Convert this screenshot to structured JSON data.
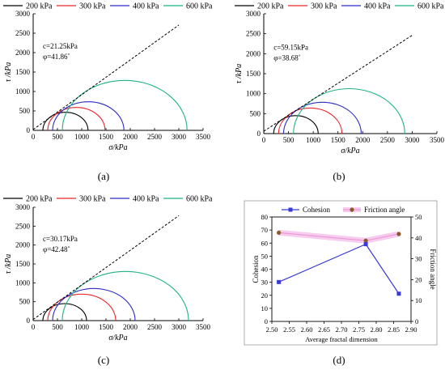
{
  "figure": {
    "panel_labels": [
      "(a)",
      "(b)",
      "(c)",
      "(d)"
    ],
    "legend_labels": [
      "200 kPa",
      "300 kPa",
      "400 kPa",
      "600 kPa"
    ],
    "legend_colors": [
      "#000000",
      "#e8262a",
      "#2b2bc8",
      "#1db383"
    ]
  },
  "chart_data": [
    {
      "panel": "(a)",
      "type": "line",
      "subtype": "mohr-circles",
      "xlabel": "σ/kPa",
      "ylabel": "τ /kPa",
      "xlim": [
        0,
        3500
      ],
      "ylim": [
        0,
        3000
      ],
      "xticks": [
        0,
        500,
        1000,
        1500,
        2000,
        2500,
        3000,
        3500
      ],
      "yticks": [
        0,
        500,
        1000,
        1500,
        2000,
        2500,
        3000
      ],
      "annotations": [
        "c=21.25kPa",
        "φ=41.86˚"
      ],
      "cohesion": 21.25,
      "friction_angle_deg": 41.86,
      "envelope_x_end": 3000,
      "series": [
        {
          "name": "200 kPa",
          "color": "#000000",
          "sigma3": 200,
          "sigma1": 1130
        },
        {
          "name": "300 kPa",
          "color": "#e8262a",
          "sigma3": 300,
          "sigma1": 1480
        },
        {
          "name": "400 kPa",
          "color": "#2b2bc8",
          "sigma3": 400,
          "sigma1": 1870
        },
        {
          "name": "600 kPa",
          "color": "#1db383",
          "sigma3": 600,
          "sigma1": 3170
        }
      ]
    },
    {
      "panel": "(b)",
      "type": "line",
      "subtype": "mohr-circles",
      "xlabel": "σ/kPa",
      "ylabel": "τ /kPa",
      "xlim": [
        0,
        3500
      ],
      "ylim": [
        0,
        3000
      ],
      "xticks": [
        0,
        500,
        1000,
        1500,
        2000,
        2500,
        3000,
        3500
      ],
      "yticks": [
        0,
        500,
        1000,
        1500,
        2000,
        2500,
        3000
      ],
      "annotations": [
        "c=59.15kPa",
        "φ=38.68˚"
      ],
      "cohesion": 59.15,
      "friction_angle_deg": 38.68,
      "envelope_x_end": 3000,
      "series": [
        {
          "name": "200 kPa",
          "color": "#000000",
          "sigma3": 200,
          "sigma1": 1100
        },
        {
          "name": "300 kPa",
          "color": "#e8262a",
          "sigma3": 300,
          "sigma1": 1580
        },
        {
          "name": "400 kPa",
          "color": "#2b2bc8",
          "sigma3": 400,
          "sigma1": 1970
        },
        {
          "name": "600 kPa",
          "color": "#1db383",
          "sigma3": 600,
          "sigma1": 2850
        }
      ]
    },
    {
      "panel": "(c)",
      "type": "line",
      "subtype": "mohr-circles",
      "xlabel": "σ/kPa",
      "ylabel": "τ /kPa",
      "xlim": [
        0,
        3500
      ],
      "ylim": [
        0,
        3000
      ],
      "xticks": [
        0,
        500,
        1000,
        1500,
        2000,
        2500,
        3000,
        3500
      ],
      "yticks": [
        0,
        500,
        1000,
        1500,
        2000,
        2500,
        3000
      ],
      "annotations": [
        "c=30.17kPa",
        "φ=42.48˚"
      ],
      "cohesion": 30.17,
      "friction_angle_deg": 42.48,
      "envelope_x_end": 3000,
      "series": [
        {
          "name": "200 kPa",
          "color": "#000000",
          "sigma3": 200,
          "sigma1": 1100
        },
        {
          "name": "300 kPa",
          "color": "#e8262a",
          "sigma3": 300,
          "sigma1": 1700
        },
        {
          "name": "400 kPa",
          "color": "#2b2bc8",
          "sigma3": 400,
          "sigma1": 2100
        },
        {
          "name": "600 kPa",
          "color": "#1db383",
          "sigma3": 600,
          "sigma1": 3200
        }
      ]
    },
    {
      "panel": "(d)",
      "type": "line",
      "xlabel": "Average fractal dimension",
      "ylabel_left": "Cohesion",
      "ylabel_right": "Friction angle",
      "xlim": [
        2.5,
        2.9
      ],
      "ylim_left": [
        0,
        80
      ],
      "ylim_right": [
        0,
        50
      ],
      "xticks": [
        "2.50",
        "2.55",
        "2.60",
        "2.65",
        "2.70",
        "2.75",
        "2.80",
        "2.85",
        "2.90"
      ],
      "yticks_left": [
        0,
        10,
        20,
        30,
        40,
        50,
        60,
        70,
        80
      ],
      "yticks_right": [
        0,
        10,
        20,
        30,
        40,
        50
      ],
      "legend_position": "top",
      "series": [
        {
          "name": "Cohesion",
          "axis": "left",
          "color": "#3a3ad6",
          "marker": "square",
          "x": [
            2.52,
            2.77,
            2.865
          ],
          "y": [
            30.17,
            59.15,
            21.25
          ]
        },
        {
          "name": "Friction angle",
          "axis": "right",
          "color": "#ec9ad6",
          "marker_color": "#8b5a2b",
          "marker": "circle",
          "x": [
            2.52,
            2.77,
            2.865
          ],
          "y": [
            42.48,
            38.68,
            41.86
          ]
        }
      ]
    }
  ]
}
